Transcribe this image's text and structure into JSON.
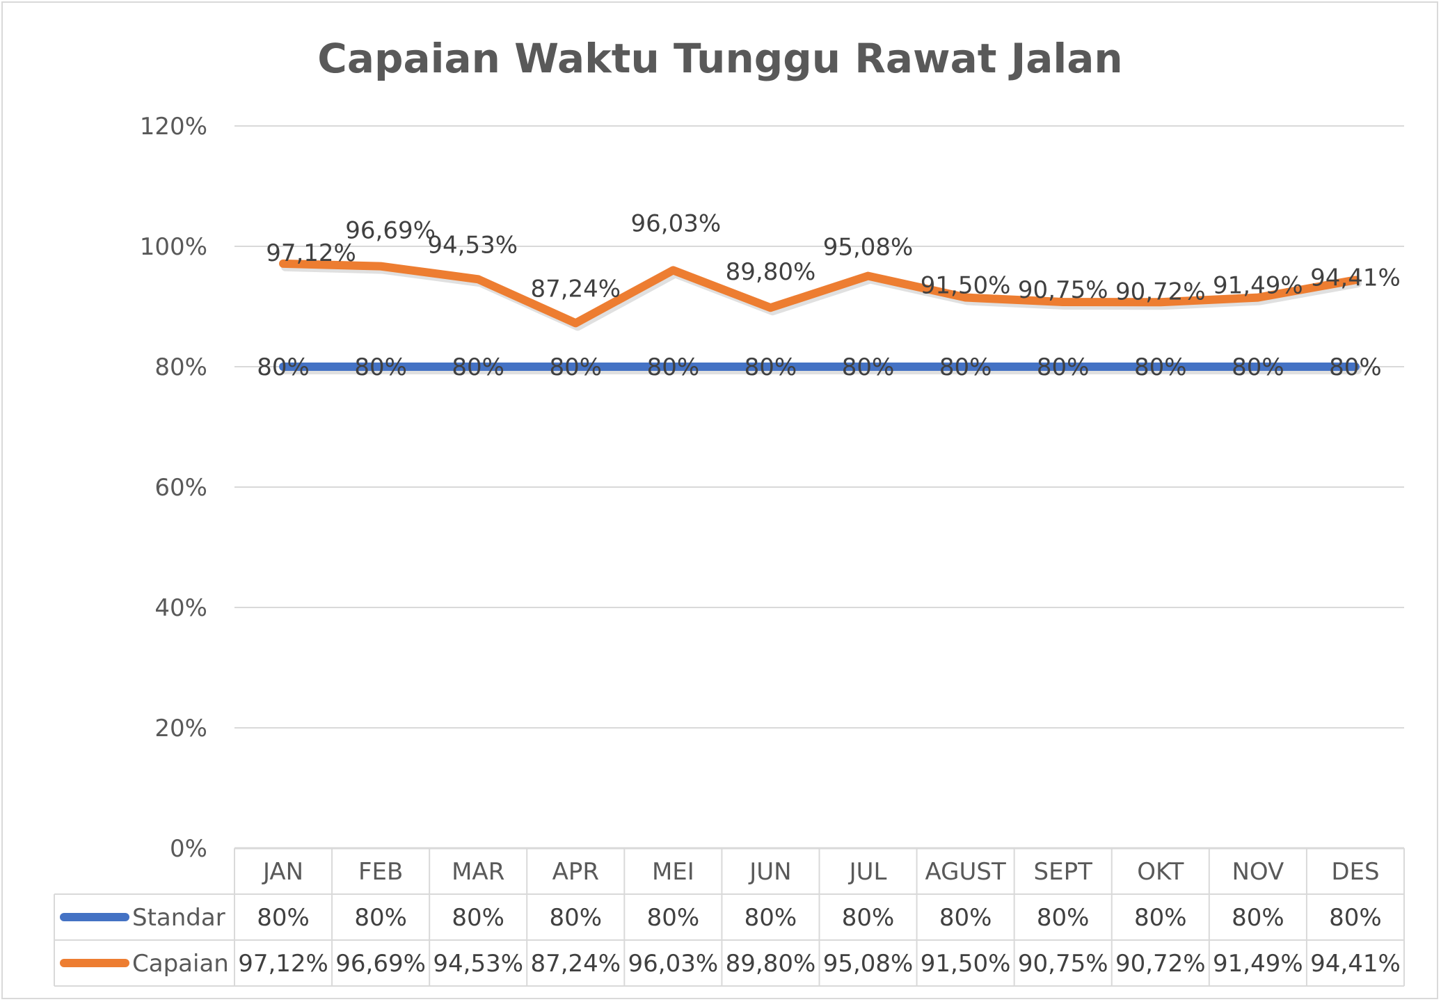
{
  "chart_data": {
    "type": "line",
    "title": "Capaian Waktu Tunggu Rawat Jalan",
    "categories": [
      "JAN",
      "FEB",
      "MAR",
      "APR",
      "MEI",
      "JUN",
      "JUL",
      "AGUST",
      "SEPT",
      "OKT",
      "NOV",
      "DES"
    ],
    "y_ticks": [
      "0%",
      "20%",
      "40%",
      "60%",
      "80%",
      "100%",
      "120%"
    ],
    "ylim": [
      0,
      120
    ],
    "grid": true,
    "legend_position": "data-table",
    "series": [
      {
        "name": "Standar",
        "color": "#4472c4",
        "values": [
          80,
          80,
          80,
          80,
          80,
          80,
          80,
          80,
          80,
          80,
          80,
          80
        ],
        "labels": [
          "80%",
          "80%",
          "80%",
          "80%",
          "80%",
          "80%",
          "80%",
          "80%",
          "80%",
          "80%",
          "80%",
          "80%"
        ]
      },
      {
        "name": "Capaian",
        "color": "#ed7d31",
        "values": [
          97.12,
          96.69,
          94.53,
          87.24,
          96.03,
          89.8,
          95.08,
          91.5,
          90.75,
          90.72,
          91.49,
          94.41
        ],
        "labels": [
          "97,12%",
          "96,69%",
          "94,53%",
          "87,24%",
          "96,03%",
          "89,80%",
          "95,08%",
          "91,50%",
          "90,75%",
          "90,72%",
          "91,49%",
          "94,41%"
        ]
      }
    ]
  }
}
